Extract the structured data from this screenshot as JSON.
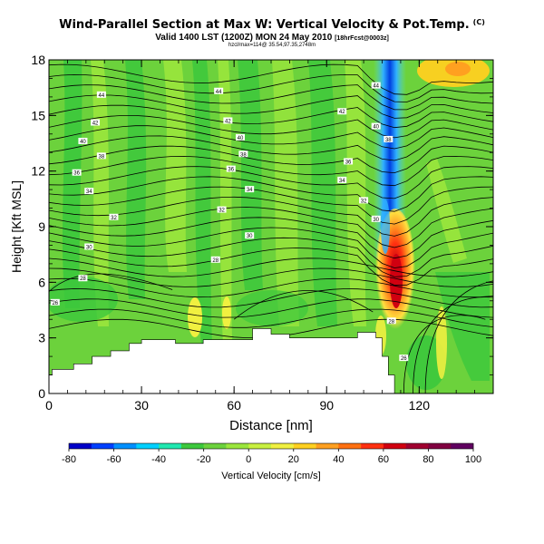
{
  "header": {
    "title": "Wind-Parallel Section at Max W: Vertical Velocity & Pot.Temp.",
    "copyright": "(C)",
    "subtitle_main": "Valid 1400 LST (1200Z) MON 24 May 2010",
    "subtitle_small": "[18hrFcst@0003z]",
    "subtitle2": "hzcl/max=114@ 35.54,97.35,2748m"
  },
  "chart_data": {
    "type": "heatmap",
    "title": "Wind-Parallel Section at Max W: Vertical Velocity & Pot.Temp.",
    "xlabel": "Distance [nm]",
    "ylabel": "Height [Kft MSL]",
    "xlim": [
      0,
      144
    ],
    "ylim": [
      0,
      18
    ],
    "x_ticks": [
      "0",
      "30",
      "60",
      "90",
      "120"
    ],
    "x_tick_values": [
      0,
      30,
      60,
      90,
      120
    ],
    "y_ticks": [
      "0",
      "3",
      "6",
      "9",
      "12",
      "15",
      "18"
    ],
    "y_tick_values": [
      0,
      3,
      6,
      9,
      12,
      15,
      18
    ],
    "colorbar": {
      "label": "Vertical Velocity [cm/s]",
      "ticks": [
        "-80",
        "-60",
        "-40",
        "-20",
        "0",
        "20",
        "40",
        "60",
        "80",
        "100"
      ],
      "tick_values": [
        -80,
        -60,
        -40,
        -20,
        0,
        20,
        40,
        60,
        80,
        100
      ],
      "range": [
        -80,
        100
      ],
      "colors": [
        "#0000c8",
        "#0040ff",
        "#0090ff",
        "#00d0ff",
        "#20e8b0",
        "#3cc83c",
        "#6cd23c",
        "#9be63c",
        "#c8f040",
        "#f0f040",
        "#ffd020",
        "#ffa020",
        "#ff7010",
        "#ff3010",
        "#d00010",
        "#a00030",
        "#800040",
        "#600060"
      ]
    },
    "terrain": [
      [
        0,
        1.0
      ],
      [
        1,
        1.3
      ],
      [
        8,
        1.6
      ],
      [
        14,
        2.0
      ],
      [
        20,
        2.3
      ],
      [
        26,
        2.7
      ],
      [
        30,
        2.9
      ],
      [
        40,
        2.9
      ],
      [
        41,
        2.7
      ],
      [
        47,
        2.7
      ],
      [
        50,
        2.9
      ],
      [
        60,
        2.9
      ],
      [
        66,
        3.5
      ],
      [
        72,
        3.2
      ],
      [
        78,
        3.0
      ],
      [
        92,
        3.0
      ],
      [
        100,
        3.3
      ],
      [
        106,
        3.0
      ],
      [
        108,
        2.0
      ],
      [
        110,
        1.0
      ],
      [
        112,
        0
      ]
    ],
    "theta_labels": [
      {
        "value": "44",
        "x": 17,
        "y": 16.1
      },
      {
        "value": "42",
        "x": 15,
        "y": 14.6
      },
      {
        "value": "40",
        "x": 11,
        "y": 13.6
      },
      {
        "value": "38",
        "x": 17,
        "y": 12.8
      },
      {
        "value": "36",
        "x": 9,
        "y": 11.9
      },
      {
        "value": "34",
        "x": 13,
        "y": 10.9
      },
      {
        "value": "32",
        "x": 21,
        "y": 9.5
      },
      {
        "value": "30",
        "x": 13,
        "y": 7.9
      },
      {
        "value": "28",
        "x": 11,
        "y": 6.2
      },
      {
        "value": "26",
        "x": 2,
        "y": 4.9
      },
      {
        "value": "44",
        "x": 55,
        "y": 16.3
      },
      {
        "value": "42",
        "x": 58,
        "y": 14.7
      },
      {
        "value": "40",
        "x": 62,
        "y": 13.8
      },
      {
        "value": "38",
        "x": 63,
        "y": 12.9
      },
      {
        "value": "36",
        "x": 59,
        "y": 12.1
      },
      {
        "value": "34",
        "x": 65,
        "y": 11.0
      },
      {
        "value": "32",
        "x": 56,
        "y": 9.9
      },
      {
        "value": "30",
        "x": 65,
        "y": 8.5
      },
      {
        "value": "28",
        "x": 54,
        "y": 7.2
      },
      {
        "value": "44",
        "x": 106,
        "y": 16.6
      },
      {
        "value": "42",
        "x": 95,
        "y": 15.2
      },
      {
        "value": "40",
        "x": 106,
        "y": 14.4
      },
      {
        "value": "38",
        "x": 110,
        "y": 13.7
      },
      {
        "value": "36",
        "x": 97,
        "y": 12.5
      },
      {
        "value": "34",
        "x": 95,
        "y": 11.5
      },
      {
        "value": "32",
        "x": 102,
        "y": 10.4
      },
      {
        "value": "30",
        "x": 106,
        "y": 9.4
      },
      {
        "value": "28",
        "x": 111,
        "y": 3.9
      },
      {
        "value": "26",
        "x": 115,
        "y": 1.9
      }
    ]
  }
}
